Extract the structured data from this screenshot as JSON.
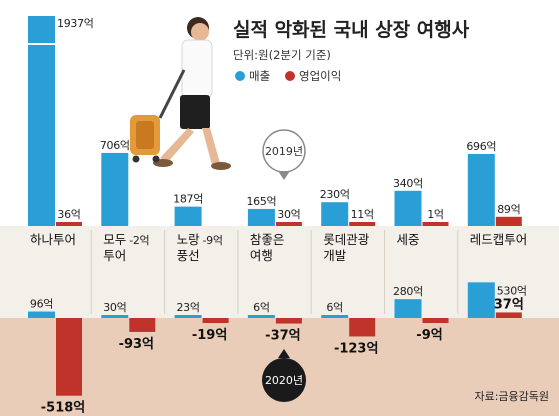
{
  "chart_data": {
    "type": "bar",
    "title": "실적 악화된 국내 상장 여행사",
    "unit_text": "단위:원(2분기 기준)",
    "legend": [
      {
        "name": "매출",
        "color": "#2a9fd6"
      },
      {
        "name": "영업이익",
        "color": "#c0332b"
      }
    ],
    "periods": [
      "2019년",
      "2020년"
    ],
    "categories": [
      "하나투어",
      "모두투어",
      "노랑풍선",
      "참좋은여행",
      "롯데관광개발",
      "세중",
      "레드캡투어"
    ],
    "category_lines": [
      [
        "하나투어"
      ],
      [
        "모두",
        "투어"
      ],
      [
        "노랑",
        "풍선"
      ],
      [
        "참좋은",
        "여행"
      ],
      [
        "롯데관광",
        "개발"
      ],
      [
        "세중"
      ],
      [
        "레드캡투어"
      ]
    ],
    "series_2019": [
      {
        "name": "매출",
        "values": [
          1937,
          706,
          187,
          165,
          230,
          340,
          696
        ],
        "labels": [
          "1937억",
          "706억",
          "187억",
          "165억",
          "230억",
          "340억",
          "696억"
        ]
      },
      {
        "name": "영업이익",
        "values": [
          36,
          -2,
          -9,
          30,
          11,
          1,
          89
        ],
        "labels": [
          "36억",
          "-2억",
          "-9억",
          "30억",
          "11억",
          "1억",
          "89억"
        ]
      }
    ],
    "series_2020": [
      {
        "name": "매출",
        "values": [
          96,
          30,
          23,
          6,
          6,
          280,
          530
        ],
        "labels": [
          "96억",
          "30억",
          "23억",
          "6억",
          "6억",
          "280억",
          "530억"
        ]
      },
      {
        "name": "영업이익",
        "values": [
          -518,
          -93,
          -19,
          -37,
          -123,
          -9,
          37
        ],
        "labels": [
          "-518억",
          "-93억",
          "-19억",
          "-37억",
          "-123억",
          "-9억",
          "37억"
        ]
      }
    ],
    "source": "자료:금융감독원"
  },
  "colors": {
    "revenue": "#2a9fd6",
    "profit": "#c0332b",
    "band": "#f3efe9",
    "lower_bg": "#e9cdb9",
    "badge_2019": "#8a8a8a",
    "badge_2020": "#1a1a1a"
  }
}
